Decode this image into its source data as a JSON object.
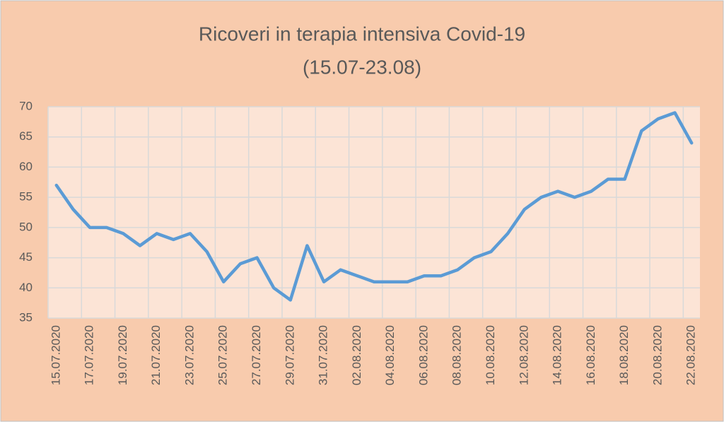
{
  "chart_data": {
    "type": "line",
    "title": [
      "Ricoveri in terapia intensiva Covid-19",
      "(15.07-23.08)"
    ],
    "categories": [
      "15.07.2020",
      null,
      "17.07.2020",
      null,
      "19.07.2020",
      null,
      "21.07.2020",
      null,
      "23.07.2020",
      null,
      "25.07.2020",
      null,
      "27.07.2020",
      null,
      "29.07.2020",
      null,
      "31.07.2020",
      null,
      "02.08.2020",
      null,
      "04.08.2020",
      null,
      "06.08.2020",
      null,
      "08.08.2020",
      null,
      "10.08.2020",
      null,
      "12.08.2020",
      null,
      "14.08.2020",
      null,
      "16.08.2020",
      null,
      "18.08.2020",
      null,
      "20.08.2020",
      null,
      "22.08.2020"
    ],
    "values": [
      57,
      53,
      50,
      50,
      49,
      47,
      49,
      48,
      49,
      46,
      41,
      44,
      45,
      40,
      38,
      47,
      41,
      43,
      42,
      41,
      41,
      41,
      42,
      42,
      43,
      45,
      46,
      49,
      53,
      55,
      56,
      55,
      56,
      58,
      58,
      66,
      68,
      69,
      64
    ],
    "color": "#5b9bd5",
    "ylim": [
      35,
      70
    ],
    "yticks": [
      35,
      40,
      45,
      50,
      55,
      60,
      65,
      70
    ],
    "grid": true
  }
}
